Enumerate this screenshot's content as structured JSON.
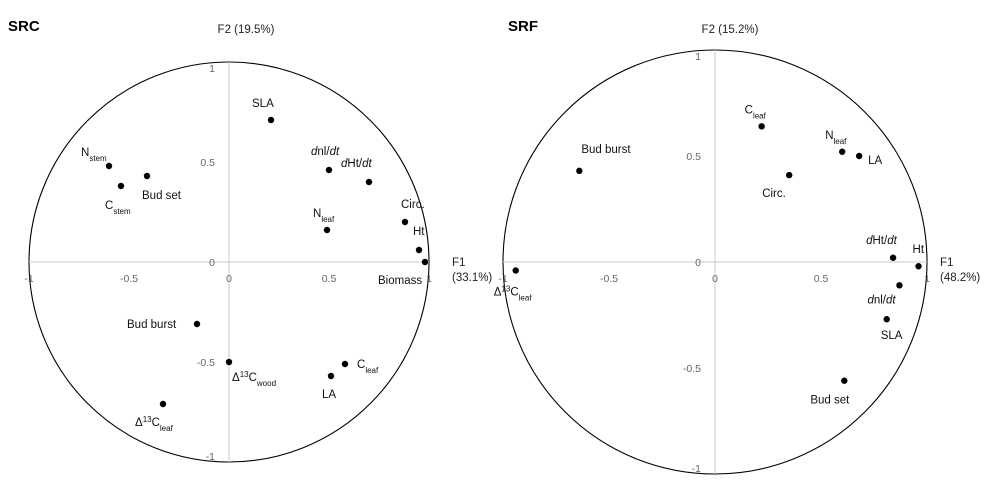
{
  "chart_data": [
    {
      "type": "scatter",
      "title": "SRC",
      "xlabel": "F1",
      "xlabel_pct": "(33.1%)",
      "ylabel": "F2 (19.5%)",
      "xlim": [
        -1,
        1
      ],
      "ylim": [
        -1,
        1
      ],
      "xticks": [
        "-1",
        "-0.5",
        "0",
        "0.5",
        "1"
      ],
      "yticks": [
        "1",
        "0.5",
        "0",
        "-0.5",
        "-1"
      ],
      "grid": false,
      "unit_circle": true,
      "points": [
        {
          "main": "SLA",
          "x": 0.21,
          "y": 0.71
        },
        {
          "main": "N",
          "sub": "stem",
          "x": -0.6,
          "y": 0.48
        },
        {
          "main": "C",
          "sub": "stem",
          "x": -0.54,
          "y": 0.38
        },
        {
          "main": "Bud set",
          "x": -0.41,
          "y": 0.43
        },
        {
          "pre": "d",
          "main": "nl/",
          "post": "dt",
          "x": 0.5,
          "y": 0.46
        },
        {
          "pre": "d",
          "main": "Ht/",
          "post": "dt",
          "x": 0.7,
          "y": 0.4
        },
        {
          "main": "N",
          "sub": "leaf",
          "x": 0.49,
          "y": 0.16
        },
        {
          "main": "Circ.",
          "x": 0.88,
          "y": 0.2
        },
        {
          "main": "Ht",
          "x": 0.95,
          "y": 0.06
        },
        {
          "main": "Biomass",
          "x": 0.98,
          "y": 0.0
        },
        {
          "main": "Bud burst",
          "x": -0.16,
          "y": -0.31
        },
        {
          "sym": "Δ",
          "sup": "13",
          "main": "C",
          "sub": "wood",
          "x": 0.0,
          "y": -0.5
        },
        {
          "main": "C",
          "sub": "leaf",
          "x": 0.58,
          "y": -0.51
        },
        {
          "main": "LA",
          "x": 0.51,
          "y": -0.57
        },
        {
          "sym": "Δ",
          "sup": "13",
          "main": "C",
          "sub": "leaf",
          "x": -0.33,
          "y": -0.71
        }
      ]
    },
    {
      "type": "scatter",
      "title": "SRF",
      "xlabel": "F1",
      "xlabel_pct": "(48.2%)",
      "ylabel": "F2 (15.2%)",
      "xlim": [
        -1,
        1
      ],
      "ylim": [
        -1,
        1
      ],
      "xticks": [
        "-1",
        "-0.5",
        "0",
        "0.5",
        "1"
      ],
      "yticks": [
        "1",
        "0.5",
        "0",
        "-0.5",
        "-1"
      ],
      "grid": false,
      "unit_circle": true,
      "points": [
        {
          "main": "C",
          "sub": "leaf",
          "x": 0.22,
          "y": 0.64
        },
        {
          "main": "N",
          "sub": "leaf",
          "x": 0.6,
          "y": 0.52
        },
        {
          "main": "LA",
          "x": 0.68,
          "y": 0.5
        },
        {
          "main": "Circ.",
          "x": 0.35,
          "y": 0.41
        },
        {
          "main": "Bud burst",
          "x": -0.64,
          "y": 0.43
        },
        {
          "pre": "d",
          "main": "Ht/",
          "post": "dt",
          "x": 0.84,
          "y": 0.02
        },
        {
          "main": "Ht",
          "x": 0.96,
          "y": -0.02
        },
        {
          "sym": "Δ",
          "sup": "13",
          "main": "C",
          "sub": "leaf",
          "x": -0.94,
          "y": -0.04
        },
        {
          "pre": "d",
          "main": "nl/",
          "post": "dt",
          "x": 0.87,
          "y": -0.11
        },
        {
          "main": "SLA",
          "x": 0.81,
          "y": -0.27
        },
        {
          "main": "Bud set",
          "x": 0.61,
          "y": -0.56
        }
      ]
    }
  ]
}
